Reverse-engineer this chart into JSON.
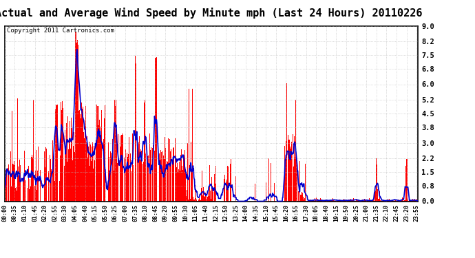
{
  "title": "Actual and Average Wind Speed by Minute mph (Last 24 Hours) 20110226",
  "copyright": "Copyright 2011 Cartronics.com",
  "yticks": [
    0.0,
    0.8,
    1.5,
    2.2,
    3.0,
    3.8,
    4.5,
    5.2,
    6.0,
    6.8,
    7.5,
    8.2,
    9.0
  ],
  "ylim": [
    0.0,
    9.0
  ],
  "bar_color": "#ff0000",
  "line_color": "#0000cc",
  "background_color": "#ffffff",
  "grid_color": "#bbbbbb",
  "title_fontsize": 11,
  "copyright_fontsize": 6.5,
  "ytick_fontsize": 7.5,
  "xtick_fontsize": 6,
  "xtick_labels": [
    "00:00",
    "00:35",
    "01:10",
    "01:45",
    "02:20",
    "02:55",
    "03:30",
    "04:05",
    "04:40",
    "05:15",
    "05:50",
    "06:25",
    "07:00",
    "07:35",
    "08:10",
    "08:45",
    "09:20",
    "09:55",
    "10:30",
    "11:05",
    "11:40",
    "12:15",
    "12:50",
    "13:25",
    "14:00",
    "14:35",
    "15:10",
    "15:45",
    "16:20",
    "16:55",
    "17:30",
    "18:05",
    "18:40",
    "19:15",
    "19:50",
    "20:25",
    "21:00",
    "21:35",
    "22:10",
    "22:45",
    "23:20",
    "23:55"
  ]
}
